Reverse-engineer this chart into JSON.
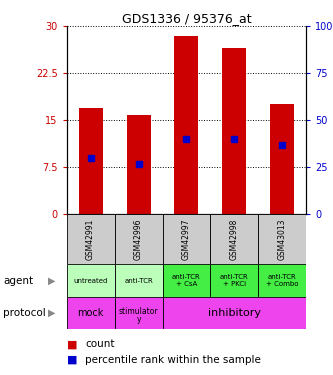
{
  "title": "GDS1336 / 95376_at",
  "samples": [
    "GSM42991",
    "GSM42996",
    "GSM42997",
    "GSM42998",
    "GSM43013"
  ],
  "bar_heights": [
    17.0,
    15.8,
    28.5,
    26.5,
    17.5
  ],
  "percentile_values": [
    9.0,
    8.0,
    12.0,
    12.0,
    11.0
  ],
  "ylim_left": [
    0,
    30
  ],
  "yticks_left": [
    0,
    7.5,
    15,
    22.5,
    30
  ],
  "ytick_labels_left": [
    "0",
    "7.5",
    "15",
    "22.5",
    "30"
  ],
  "ytick_labels_right": [
    "0",
    "25",
    "50",
    "75",
    "100%"
  ],
  "bar_color": "#cc0000",
  "percentile_color": "#0000cc",
  "agent_labels": [
    "untreated",
    "anti-TCR",
    "anti-TCR\n+ CsA",
    "anti-TCR\n+ PKCi",
    "anti-TCR\n+ Combo"
  ],
  "agent_colors_light": "#bbffbb",
  "agent_colors_dark": "#44ee44",
  "agent_light_indices": [
    0,
    1
  ],
  "agent_dark_indices": [
    2,
    3,
    4
  ],
  "sample_bg_color": "#cccccc",
  "proto_color": "#ee44ee",
  "legend_count_color": "#cc0000",
  "legend_pct_color": "#0000cc",
  "bar_width": 0.5
}
